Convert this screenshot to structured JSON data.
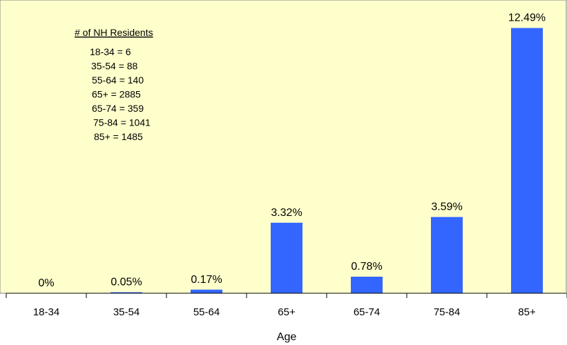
{
  "chart_data": {
    "type": "bar",
    "categories": [
      "18-34",
      "35-54",
      "55-64",
      "65+",
      "65-74",
      "75-84",
      "85+"
    ],
    "values": [
      0,
      0.05,
      0.17,
      3.32,
      0.78,
      3.59,
      12.49
    ],
    "value_labels": [
      "0%",
      "0.05%",
      "0.17%",
      "3.32%",
      "0.78%",
      "3.59%",
      "12.49%"
    ],
    "xlabel": "Age",
    "ylabel": "",
    "ylim": [
      0,
      13.5
    ],
    "grid": false,
    "colors": {
      "bar": "#3366ff",
      "plot_background": "#ffffcc"
    },
    "annotation": {
      "title": "# of NH Residents",
      "lines": [
        "18-34 = 6",
        "35-54 = 88",
        "55-64 = 140",
        "65+ = 2885",
        "65-74 = 359",
        "75-84 = 1041",
        "85+ = 1485"
      ]
    }
  }
}
